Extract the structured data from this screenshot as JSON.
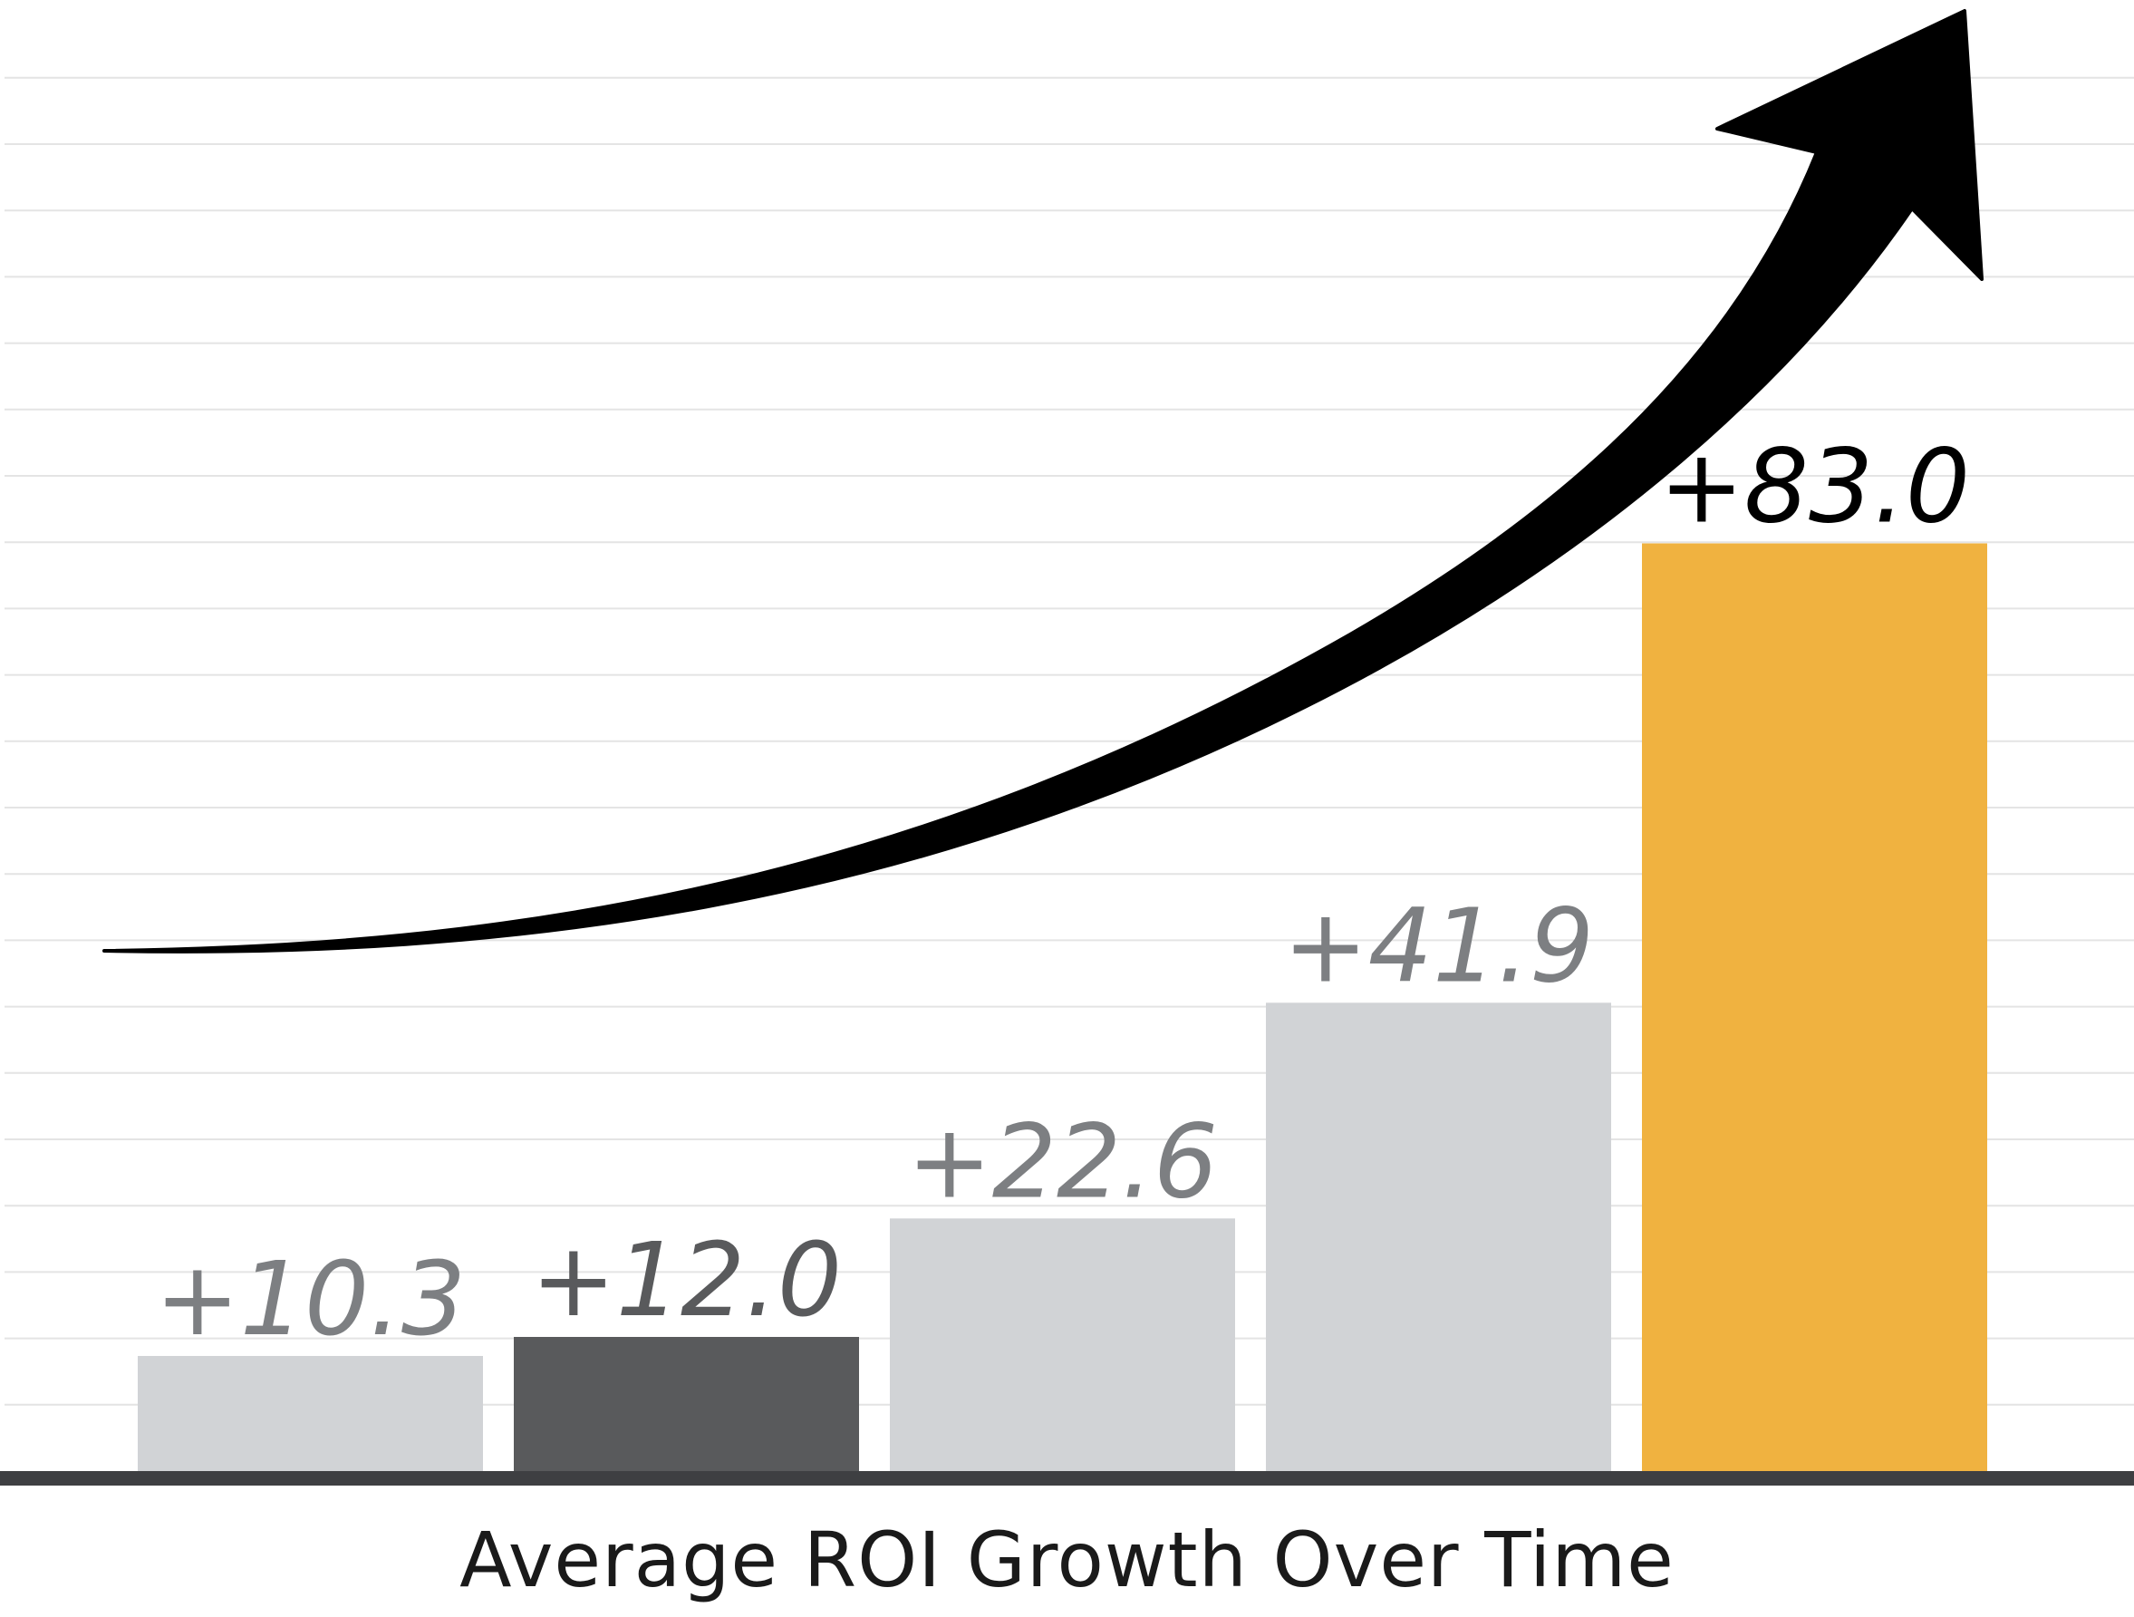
{
  "chart_data": {
    "type": "bar",
    "title": "Average ROI Growth Over Time",
    "categories": [
      "",
      "",
      "",
      "",
      ""
    ],
    "values": [
      10.3,
      12.0,
      22.6,
      41.9,
      83.0
    ],
    "data_labels": [
      "+10.3",
      "+12.0",
      "+22.6",
      "+41.9",
      "+83.0"
    ],
    "ylim": [
      0,
      130
    ],
    "grid": true,
    "bar_colors": [
      "#d1d3d6",
      "#595a5c",
      "#d1d3d6",
      "#d1d3d6",
      "#f0b240"
    ],
    "label_colors": [
      "#7d7f82",
      "#595a5c",
      "#7d7f82",
      "#7d7f82",
      "#000000"
    ],
    "trend_arrow": true
  },
  "colors": {
    "grid": "#e4e4e4",
    "axis": "#3e3f42",
    "arrow": "#000000"
  }
}
